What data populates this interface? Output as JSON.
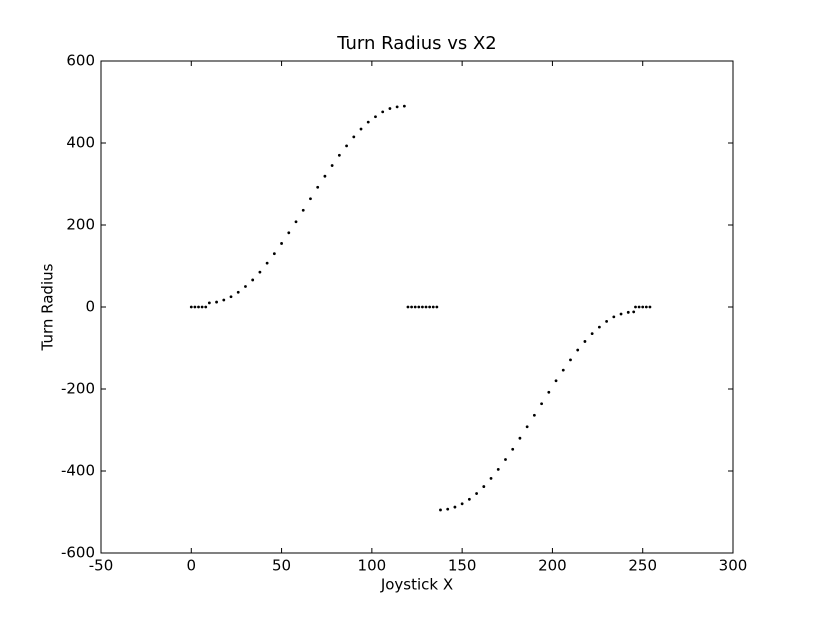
{
  "chart_data": {
    "type": "scatter",
    "title": "Turn Radius vs X2",
    "x_label": "Joystick X",
    "y_label": "Turn Radius",
    "xlim": [
      -50,
      300
    ],
    "xticks": [
      -50,
      0,
      50,
      100,
      150,
      200,
      250,
      300
    ],
    "ylim": [
      -600,
      600
    ],
    "yticks": [
      -600,
      -400,
      -200,
      0,
      200,
      400,
      600
    ],
    "series": [
      {
        "color": "#000000",
        "x": [
          0,
          2,
          4,
          6,
          8,
          10,
          14,
          18,
          22,
          26,
          30,
          34,
          38,
          42,
          46,
          50,
          54,
          58,
          62,
          66,
          70,
          74,
          78,
          82,
          86,
          90,
          94,
          98,
          102,
          106,
          110,
          114,
          118,
          120,
          122,
          124,
          126,
          128,
          130,
          132,
          134,
          136,
          138,
          142,
          146,
          150,
          154,
          158,
          162,
          166,
          170,
          174,
          178,
          182,
          186,
          190,
          194,
          198,
          202,
          206,
          210,
          214,
          218,
          222,
          226,
          230,
          234,
          238,
          242,
          245,
          246,
          248,
          250,
          252,
          254
        ],
        "values": [
          0,
          0,
          0,
          0,
          0,
          10,
          12,
          17,
          25,
          36,
          50,
          66,
          85,
          107,
          130,
          155,
          181,
          208,
          236,
          264,
          292,
          319,
          345,
          370,
          393,
          415,
          434,
          451,
          464,
          476,
          484,
          488,
          490,
          0,
          0,
          0,
          0,
          0,
          0,
          0,
          0,
          0,
          -495,
          -493,
          -488,
          -480,
          -469,
          -455,
          -438,
          -418,
          -396,
          -372,
          -347,
          -320,
          -292,
          -264,
          -236,
          -208,
          -180,
          -154,
          -129,
          -105,
          -84,
          -65,
          -49,
          -35,
          -24,
          -17,
          -13,
          -12,
          0,
          0,
          0,
          0,
          0
        ]
      }
    ]
  }
}
